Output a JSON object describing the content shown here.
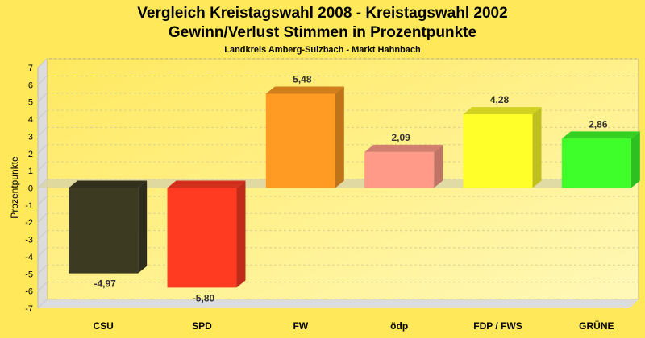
{
  "chart_data": {
    "type": "bar",
    "title": "Vergleich Kreistagswahl 2008 - Kreistagswahl 2002",
    "subtitle": "Gewinn/Verlust Stimmen in Prozentpunkte",
    "subtitle2": "Landkreis Amberg-Sulzbach - Markt Hahnbach",
    "xlabel": "",
    "ylabel": "Prozentpunkte",
    "ylim": [
      -7,
      7
    ],
    "yticks": [
      7,
      6,
      5,
      4,
      3,
      2,
      1,
      0,
      -1,
      -2,
      -3,
      -4,
      -5,
      -6,
      -7
    ],
    "grid": true,
    "categories": [
      "CSU",
      "SPD",
      "FW",
      "ödp",
      "FDP / FWS",
      "GRÜNE"
    ],
    "values": [
      -4.97,
      -5.8,
      5.48,
      2.09,
      4.28,
      2.86
    ],
    "value_labels": [
      "-4,97",
      "-5,80",
      "5,48",
      "2,09",
      "4,28",
      "2,86"
    ],
    "colors": [
      "#3d3a22",
      "#ff3b22",
      "#ff9a22",
      "#ff9a88",
      "#ffff2a",
      "#3eff2a"
    ]
  }
}
